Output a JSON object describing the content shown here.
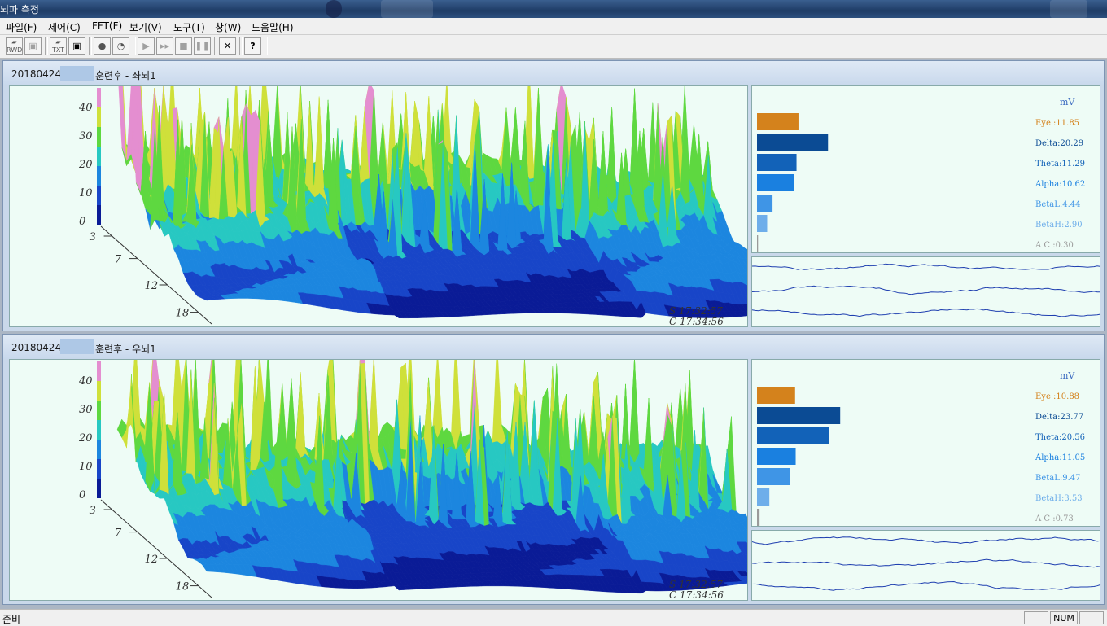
{
  "app": {
    "title": "뇌파 측정"
  },
  "menu": [
    "파일(F)",
    "제어(C)",
    "FFT(F)",
    "보기(V)",
    "도구(T)",
    "창(W)",
    "도움말(H)"
  ],
  "toolbar": {
    "icons": [
      "open-rwd-icon",
      "save-rwd-icon",
      "open-txt-icon",
      "save-icon",
      "record-icon",
      "timer-icon",
      "play-icon",
      "fast-forward-icon",
      "stop-icon",
      "pause-icon",
      "close-icon",
      "help-icon"
    ],
    "rwd_label": "RWD",
    "txt_label": "TXT"
  },
  "panels": [
    {
      "date": "20180424",
      "title": "훈련후 - 좌뇌1",
      "unit": "mV",
      "bands": [
        {
          "label": "Eye :11.85",
          "value": 11.85,
          "color": "#d4821c"
        },
        {
          "label": "Delta:20.29",
          "value": 20.29,
          "color": "#0b4b94"
        },
        {
          "label": "Theta:11.29",
          "value": 11.29,
          "color": "#1262b8"
        },
        {
          "label": "Alpha:10.62",
          "value": 10.62,
          "color": "#1a80e0"
        },
        {
          "label": "BetaL:4.44",
          "value": 4.44,
          "color": "#3f95e6"
        },
        {
          "label": "BetaH:2.90",
          "value": 2.9,
          "color": "#6eaeea"
        },
        {
          "label": "A C :0.30",
          "value": 0.3,
          "color": "#9a9a9a"
        }
      ],
      "s_time": "S 17:32:57",
      "c_time": "C 17:34:56"
    },
    {
      "date": "20180424",
      "title": "훈련후 - 우뇌1",
      "unit": "mV",
      "bands": [
        {
          "label": "Eye :10.88",
          "value": 10.88,
          "color": "#d4821c"
        },
        {
          "label": "Delta:23.77",
          "value": 23.77,
          "color": "#0b4b94"
        },
        {
          "label": "Theta:20.56",
          "value": 20.56,
          "color": "#1262b8"
        },
        {
          "label": "Alpha:11.05",
          "value": 11.05,
          "color": "#1a80e0"
        },
        {
          "label": "BetaL:9.47",
          "value": 9.47,
          "color": "#3f95e6"
        },
        {
          "label": "BetaH:3.53",
          "value": 3.53,
          "color": "#6eaeea"
        },
        {
          "label": "A C :0.73",
          "value": 0.73,
          "color": "#9a9a9a"
        }
      ],
      "s_time": "S 17:32:57",
      "c_time": "C 17:34:56"
    }
  ],
  "axis": {
    "z_ticks": [
      "40",
      "30",
      "20",
      "10",
      "0"
    ],
    "freq_ticks": [
      "3",
      "7",
      "12",
      "18"
    ]
  },
  "status": {
    "text": "준비",
    "num": "NUM"
  }
}
